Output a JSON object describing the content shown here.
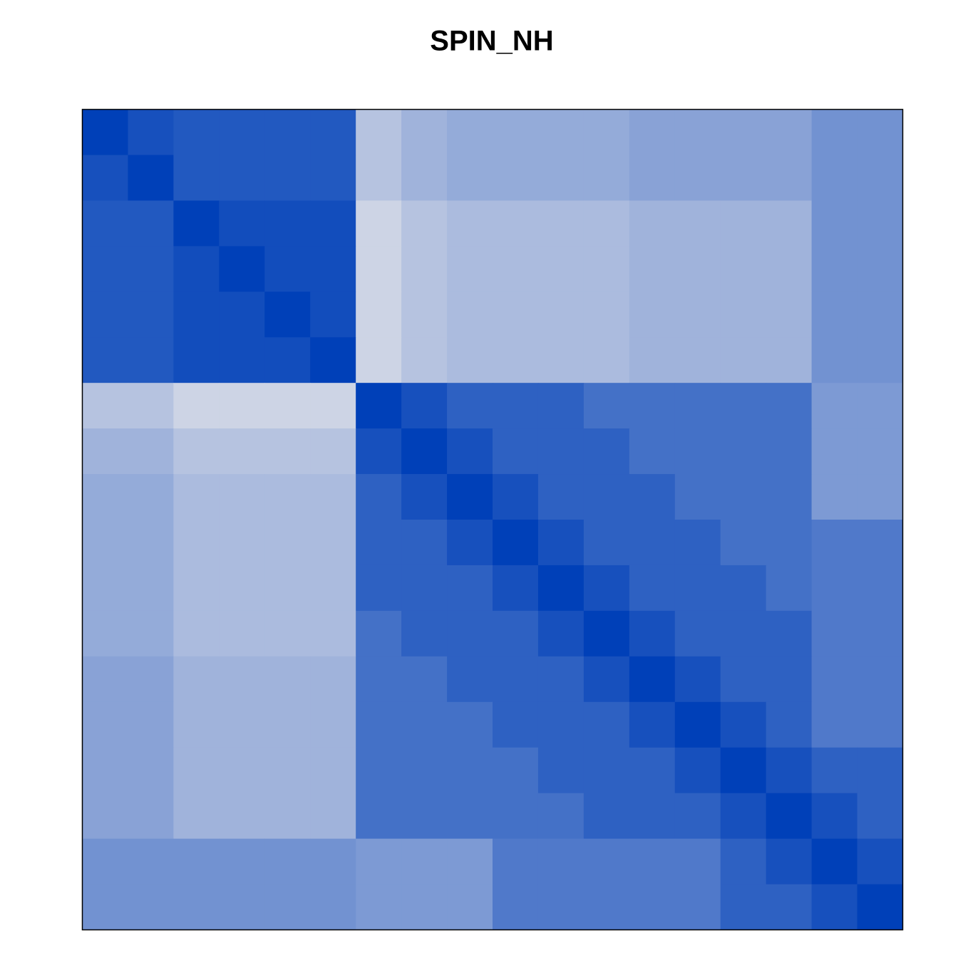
{
  "chart_data": {
    "type": "heatmap",
    "title": "SPIN_NH",
    "colors": [
      "#e4e4ea",
      "#0040b8"
    ],
    "values": [
      [
        1,
        0.9,
        0.85,
        0.85,
        0.85,
        0.85,
        0.2,
        0.3,
        0.35,
        0.35,
        0.35,
        0.35,
        0.4,
        0.4,
        0.4,
        0.4,
        0.5,
        0.5
      ],
      [
        0.9,
        1,
        0.85,
        0.85,
        0.85,
        0.85,
        0.2,
        0.3,
        0.35,
        0.35,
        0.35,
        0.35,
        0.4,
        0.4,
        0.4,
        0.4,
        0.5,
        0.5
      ],
      [
        0.85,
        0.85,
        1,
        0.92,
        0.92,
        0.92,
        0.1,
        0.2,
        0.25,
        0.25,
        0.25,
        0.25,
        0.3,
        0.3,
        0.3,
        0.3,
        0.5,
        0.5
      ],
      [
        0.85,
        0.85,
        0.92,
        1,
        0.92,
        0.92,
        0.1,
        0.2,
        0.25,
        0.25,
        0.25,
        0.25,
        0.3,
        0.3,
        0.3,
        0.3,
        0.5,
        0.5
      ],
      [
        0.85,
        0.85,
        0.92,
        0.92,
        1,
        0.92,
        0.1,
        0.2,
        0.25,
        0.25,
        0.25,
        0.25,
        0.3,
        0.3,
        0.3,
        0.3,
        0.5,
        0.5
      ],
      [
        0.85,
        0.85,
        0.92,
        0.92,
        0.92,
        1,
        0.1,
        0.2,
        0.25,
        0.25,
        0.25,
        0.25,
        0.3,
        0.3,
        0.3,
        0.3,
        0.5,
        0.5
      ],
      [
        0.2,
        0.2,
        0.1,
        0.1,
        0.1,
        0.1,
        1,
        0.9,
        0.8,
        0.8,
        0.8,
        0.7,
        0.7,
        0.7,
        0.7,
        0.7,
        0.45,
        0.45
      ],
      [
        0.3,
        0.3,
        0.2,
        0.2,
        0.2,
        0.2,
        0.9,
        1,
        0.9,
        0.8,
        0.8,
        0.8,
        0.7,
        0.7,
        0.7,
        0.7,
        0.45,
        0.45
      ],
      [
        0.35,
        0.35,
        0.25,
        0.25,
        0.25,
        0.25,
        0.8,
        0.9,
        1,
        0.9,
        0.8,
        0.8,
        0.8,
        0.7,
        0.7,
        0.7,
        0.45,
        0.45
      ],
      [
        0.35,
        0.35,
        0.25,
        0.25,
        0.25,
        0.25,
        0.8,
        0.8,
        0.9,
        1,
        0.9,
        0.8,
        0.8,
        0.8,
        0.7,
        0.7,
        0.65,
        0.65
      ],
      [
        0.35,
        0.35,
        0.25,
        0.25,
        0.25,
        0.25,
        0.8,
        0.8,
        0.8,
        0.9,
        1,
        0.9,
        0.8,
        0.8,
        0.8,
        0.7,
        0.65,
        0.65
      ],
      [
        0.35,
        0.35,
        0.25,
        0.25,
        0.25,
        0.25,
        0.7,
        0.8,
        0.8,
        0.8,
        0.9,
        1,
        0.9,
        0.8,
        0.8,
        0.8,
        0.65,
        0.65
      ],
      [
        0.4,
        0.4,
        0.3,
        0.3,
        0.3,
        0.3,
        0.7,
        0.7,
        0.8,
        0.8,
        0.8,
        0.9,
        1,
        0.9,
        0.8,
        0.8,
        0.65,
        0.65
      ],
      [
        0.4,
        0.4,
        0.3,
        0.3,
        0.3,
        0.3,
        0.7,
        0.7,
        0.7,
        0.8,
        0.8,
        0.8,
        0.9,
        1,
        0.9,
        0.8,
        0.65,
        0.65
      ],
      [
        0.4,
        0.4,
        0.3,
        0.3,
        0.3,
        0.3,
        0.7,
        0.7,
        0.7,
        0.7,
        0.8,
        0.8,
        0.8,
        0.9,
        1,
        0.9,
        0.8,
        0.8
      ],
      [
        0.4,
        0.4,
        0.3,
        0.3,
        0.3,
        0.3,
        0.7,
        0.7,
        0.7,
        0.7,
        0.7,
        0.8,
        0.8,
        0.8,
        0.9,
        1,
        0.9,
        0.8
      ],
      [
        0.5,
        0.5,
        0.5,
        0.5,
        0.5,
        0.5,
        0.45,
        0.45,
        0.45,
        0.65,
        0.65,
        0.65,
        0.65,
        0.65,
        0.8,
        0.9,
        1,
        0.9
      ],
      [
        0.5,
        0.5,
        0.5,
        0.5,
        0.5,
        0.5,
        0.45,
        0.45,
        0.45,
        0.65,
        0.65,
        0.65,
        0.65,
        0.65,
        0.8,
        0.8,
        0.9,
        1
      ]
    ]
  }
}
